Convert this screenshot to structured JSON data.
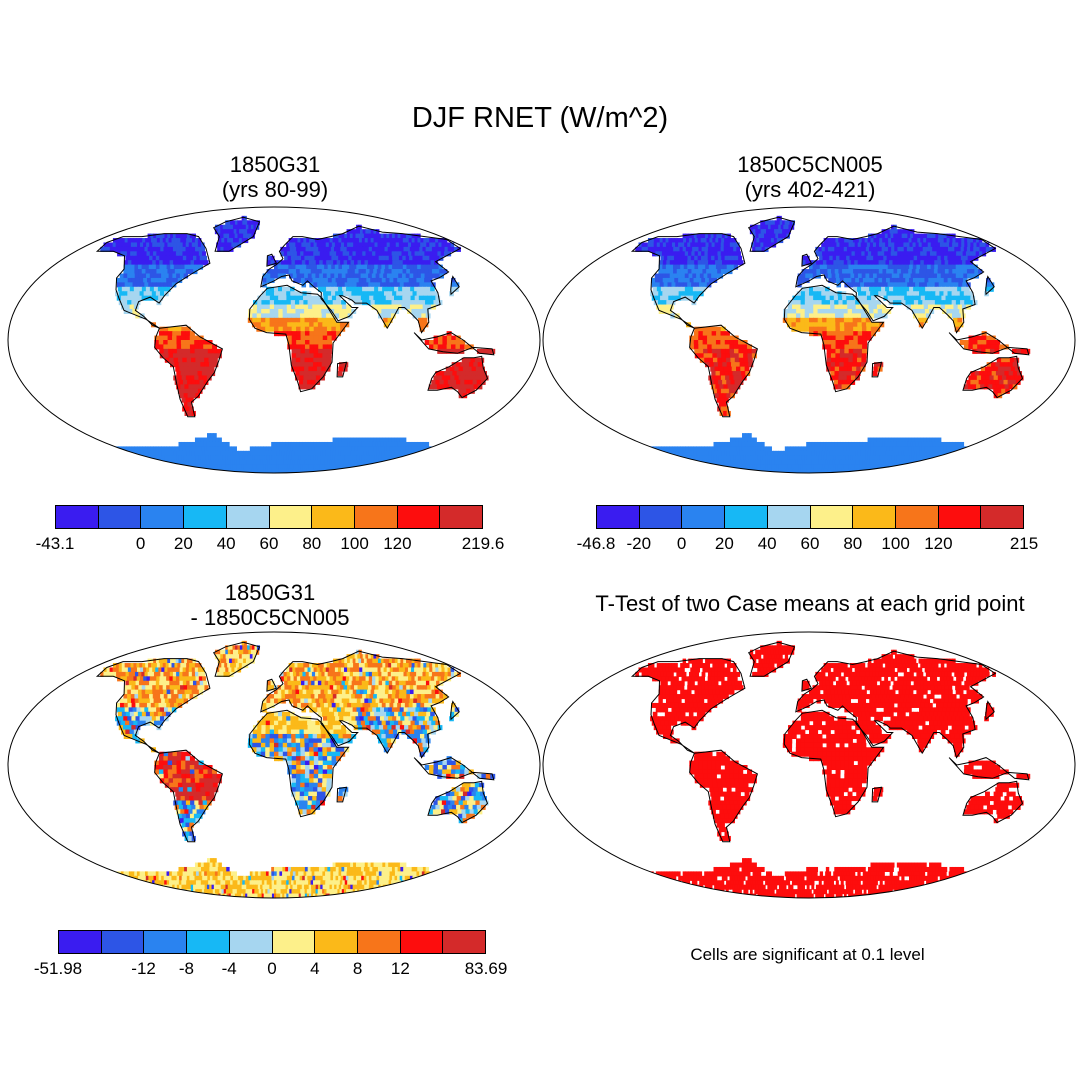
{
  "title": "DJF RNET (W/m^2)",
  "palette": [
    "#3a1cf0",
    "#2d55e6",
    "#2a83f0",
    "#17b8f5",
    "#a6d6f0",
    "#fdf08a",
    "#fbb919",
    "#f7751a",
    "#fd0d0d",
    "#d42a2a"
  ],
  "ocean_color": "#ffffff",
  "panels": [
    {
      "line1": "1850G31",
      "line2": "(yrs 80-99)",
      "mode": "field1",
      "ticks": [
        "-43.1",
        "0",
        "20",
        "40",
        "60",
        "80",
        "100",
        "120",
        "219.6"
      ]
    },
    {
      "line1": "1850C5CN005",
      "line2": "(yrs 402-421)",
      "mode": "field2",
      "ticks": [
        "-46.8",
        "-20",
        "0",
        "20",
        "40",
        "60",
        "80",
        "100",
        "120",
        "215"
      ]
    },
    {
      "line1": "1850G31",
      "line2": "- 1850C5CN005",
      "mode": "diff",
      "ticks": [
        "-51.98",
        "-12",
        "-8",
        "-4",
        "0",
        "4",
        "8",
        "12",
        "83.69"
      ]
    },
    {
      "line1": "T-Test of two Case means at each grid point",
      "line2": "",
      "mode": "ttest",
      "note": "Cells are significant at 0.1 level"
    }
  ]
}
